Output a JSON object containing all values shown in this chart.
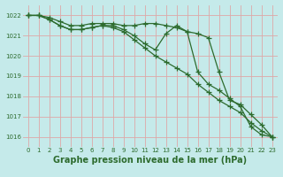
{
  "xlabel": "Graphe pression niveau de la mer (hPa)",
  "background_color": "#c5eaea",
  "grid_color": "#dda8a8",
  "line_color": "#2d6b2d",
  "hours": [
    0,
    1,
    2,
    3,
    4,
    5,
    6,
    7,
    8,
    9,
    10,
    11,
    12,
    13,
    14,
    15,
    16,
    17,
    18,
    19,
    20,
    21,
    22,
    23
  ],
  "series": [
    [
      1022.0,
      1022.0,
      1021.9,
      1021.7,
      1021.5,
      1021.5,
      1021.6,
      1021.6,
      1021.6,
      1021.5,
      1021.5,
      1021.6,
      1021.6,
      1021.5,
      1021.4,
      1021.2,
      1019.2,
      1018.6,
      1018.3,
      1017.9,
      1017.5,
      1016.5,
      1016.1,
      1016.0
    ],
    [
      1022.0,
      1022.0,
      1021.8,
      1021.5,
      1021.3,
      1021.3,
      1021.4,
      1021.5,
      1021.5,
      1021.3,
      1021.0,
      1020.6,
      1020.3,
      1021.1,
      1021.5,
      1021.2,
      1021.1,
      1020.9,
      1019.2,
      1017.8,
      1017.6,
      1017.1,
      1016.6,
      1016.0
    ],
    [
      1022.0,
      1022.0,
      1021.8,
      1021.5,
      1021.3,
      1021.3,
      1021.4,
      1021.5,
      1021.4,
      1021.2,
      1020.8,
      1020.4,
      1020.0,
      1019.7,
      1019.4,
      1019.1,
      1018.6,
      1018.2,
      1017.8,
      1017.5,
      1017.2,
      1016.7,
      1016.3,
      1016.0
    ]
  ],
  "ylim": [
    1015.5,
    1022.5
  ],
  "yticks": [
    1016,
    1017,
    1018,
    1019,
    1020,
    1021,
    1022
  ],
  "xlim": [
    -0.5,
    23.5
  ],
  "xticks": [
    0,
    1,
    2,
    3,
    4,
    5,
    6,
    7,
    8,
    9,
    10,
    11,
    12,
    13,
    14,
    15,
    16,
    17,
    18,
    19,
    20,
    21,
    22,
    23
  ],
  "marker": "+",
  "markersize": 4,
  "linewidth": 0.9,
  "xlabel_fontsize": 7.0,
  "tick_fontsize": 5.0,
  "line_color_dark": "#2d6b2d"
}
